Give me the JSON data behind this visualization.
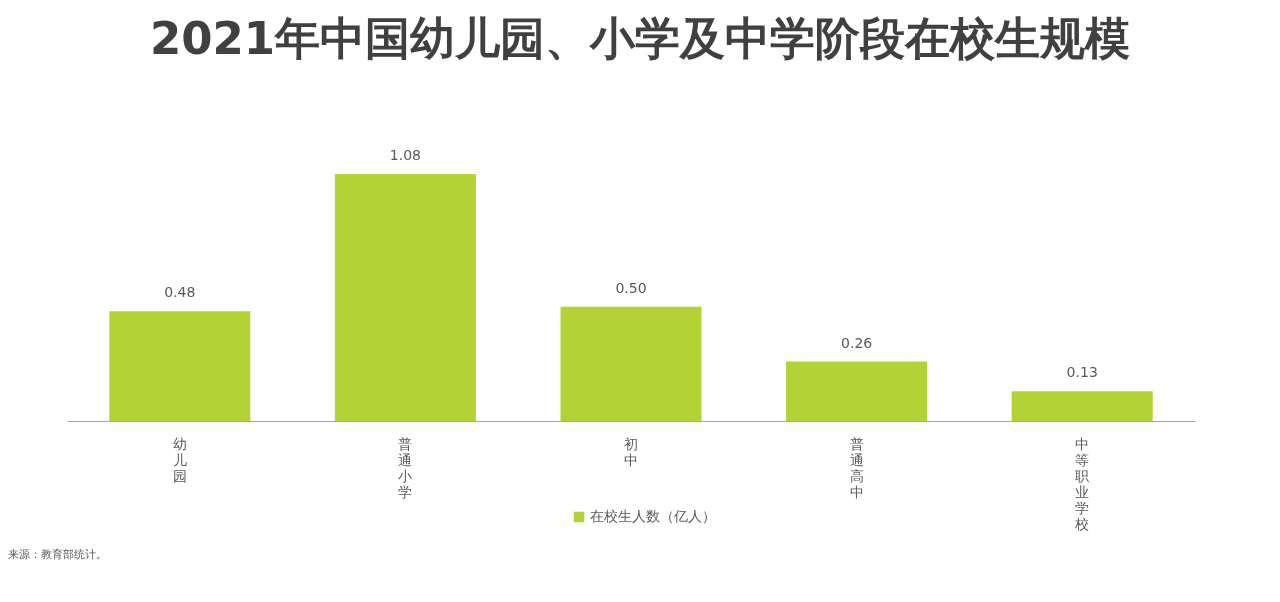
{
  "chart_data": {
    "type": "bar",
    "title": "2021年中国幼儿园、小学及中学阶段在校生规模",
    "categories": [
      "幼儿园",
      "普通小学",
      "初中",
      "普通高中",
      "中等职业学校"
    ],
    "series": [
      {
        "name": "在校生人数（亿人）",
        "color": "#b2d235",
        "values": [
          0.48,
          1.08,
          0.5,
          0.26,
          0.13
        ],
        "value_labels": [
          "0.48",
          "1.08",
          "0.50",
          "0.26",
          "0.13"
        ]
      }
    ],
    "legend": "bottom",
    "grid": false,
    "annotations": [
      "来源：教育部统计。"
    ]
  }
}
